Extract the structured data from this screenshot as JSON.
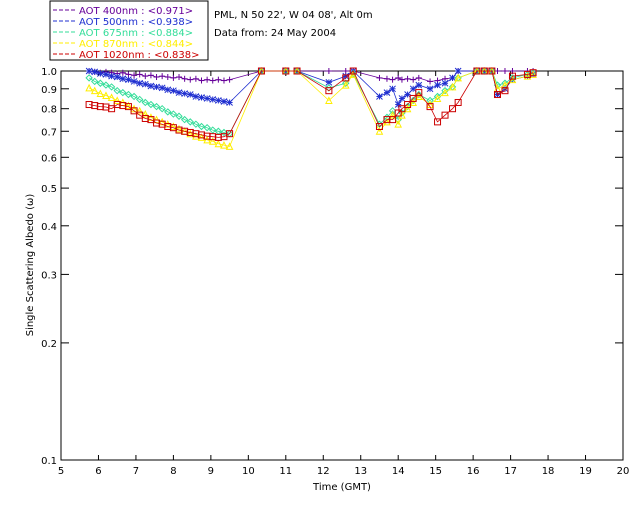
{
  "header": {
    "site_line": "PML, N 50 22', W 04 08', Alt 0m",
    "date_line": "Data from: 24 May 2004"
  },
  "legend": [
    {
      "text": "AOT  400nm : <0.971>",
      "color": "#660099"
    },
    {
      "text": "AOT  500nm : <0.938>",
      "color": "#1f2fd0"
    },
    {
      "text": "AOT  675nm : <0.884>",
      "color": "#33dd99"
    },
    {
      "text": "AOT  870nm : <0.844>",
      "color": "#ffee00"
    },
    {
      "text": "AOT 1020nm : <0.838>",
      "color": "#cc0000"
    }
  ],
  "chart_data": {
    "type": "scatter",
    "xlabel": "Time (GMT)",
    "ylabel": "Single Scattering Albedo (ω)",
    "xlim": [
      5,
      20
    ],
    "ylim": [
      0.1,
      1.0
    ],
    "y_scale": "log",
    "x_ticks": [
      "5",
      "6",
      "7",
      "8",
      "9",
      "10",
      "11",
      "12",
      "13",
      "14",
      "15",
      "16",
      "17",
      "18",
      "19",
      "20"
    ],
    "y_ticks": [
      "0.1",
      "0.2",
      "0.3",
      "0.4",
      "0.5",
      "0.6",
      "0.7",
      "0.8",
      "0.9",
      "1.0"
    ],
    "series": [
      {
        "name": "AOT  400nm : <0.971>",
        "color": "#660099",
        "marker": "plus",
        "x": [
          5.75,
          5.9,
          6.05,
          6.2,
          6.35,
          6.5,
          6.65,
          6.8,
          6.95,
          7.1,
          7.25,
          7.4,
          7.55,
          7.7,
          7.85,
          8.0,
          8.15,
          8.3,
          8.45,
          8.6,
          8.75,
          8.9,
          9.05,
          9.2,
          9.35,
          9.5,
          10.35,
          11.0,
          11.3,
          12.15,
          12.6,
          12.8,
          13.5,
          13.7,
          13.85,
          14.0,
          14.1,
          14.25,
          14.4,
          14.55,
          14.85,
          15.05,
          15.25,
          15.45,
          15.6,
          16.1,
          16.3,
          16.5,
          16.65,
          16.85,
          17.05,
          17.45,
          17.6
        ],
        "y": [
          1.0,
          0.995,
          0.99,
          0.995,
          0.99,
          0.985,
          0.99,
          0.98,
          0.975,
          0.98,
          0.97,
          0.975,
          0.965,
          0.97,
          0.965,
          0.96,
          0.965,
          0.955,
          0.95,
          0.955,
          0.945,
          0.95,
          0.945,
          0.95,
          0.945,
          0.95,
          1.0,
          1.0,
          1.0,
          1.0,
          1.0,
          1.0,
          0.96,
          0.955,
          0.95,
          0.96,
          0.95,
          0.955,
          0.95,
          0.96,
          0.94,
          0.945,
          0.955,
          0.96,
          1.0,
          1.0,
          1.0,
          1.0,
          1.0,
          1.0,
          1.0,
          1.0,
          1.0
        ]
      },
      {
        "name": "AOT  500nm : <0.938>",
        "color": "#1f2fd0",
        "marker": "asterisk",
        "x": [
          5.75,
          5.9,
          6.05,
          6.2,
          6.35,
          6.5,
          6.65,
          6.8,
          6.95,
          7.1,
          7.25,
          7.4,
          7.55,
          7.7,
          7.85,
          8.0,
          8.15,
          8.3,
          8.45,
          8.6,
          8.75,
          8.9,
          9.05,
          9.2,
          9.35,
          9.5,
          10.35,
          11.0,
          11.3,
          12.15,
          12.6,
          12.8,
          13.5,
          13.7,
          13.85,
          14.0,
          14.1,
          14.25,
          14.4,
          14.55,
          14.85,
          15.05,
          15.25,
          15.45,
          15.6,
          16.1,
          16.3,
          16.5,
          16.65,
          16.85,
          17.05,
          17.45,
          17.6
        ],
        "y": [
          1.0,
          0.995,
          0.985,
          0.98,
          0.97,
          0.965,
          0.955,
          0.95,
          0.94,
          0.93,
          0.925,
          0.915,
          0.91,
          0.905,
          0.895,
          0.89,
          0.88,
          0.875,
          0.87,
          0.86,
          0.855,
          0.85,
          0.845,
          0.84,
          0.835,
          0.83,
          1.0,
          1.0,
          1.0,
          0.935,
          0.97,
          1.0,
          0.86,
          0.88,
          0.9,
          0.82,
          0.85,
          0.87,
          0.9,
          0.92,
          0.9,
          0.92,
          0.93,
          0.96,
          1.0,
          1.0,
          1.0,
          1.0,
          0.87,
          0.9,
          0.95,
          0.97,
          0.98
        ]
      },
      {
        "name": "AOT  675nm : <0.884>",
        "color": "#33dd99",
        "marker": "diamond",
        "x": [
          5.75,
          5.9,
          6.05,
          6.2,
          6.35,
          6.5,
          6.65,
          6.8,
          6.95,
          7.1,
          7.25,
          7.4,
          7.55,
          7.7,
          7.85,
          8.0,
          8.15,
          8.3,
          8.45,
          8.6,
          8.75,
          8.9,
          9.05,
          9.2,
          9.35,
          9.5,
          10.35,
          11.0,
          11.3,
          12.15,
          12.6,
          12.8,
          13.5,
          13.7,
          13.85,
          14.0,
          14.1,
          14.25,
          14.4,
          14.55,
          14.85,
          15.05,
          15.25,
          15.45,
          15.6,
          16.1,
          16.3,
          16.5,
          16.65,
          16.85,
          17.05,
          17.45,
          17.6
        ],
        "y": [
          0.96,
          0.94,
          0.93,
          0.92,
          0.91,
          0.89,
          0.88,
          0.87,
          0.86,
          0.845,
          0.83,
          0.82,
          0.81,
          0.8,
          0.785,
          0.775,
          0.765,
          0.75,
          0.74,
          0.73,
          0.72,
          0.715,
          0.705,
          0.7,
          0.695,
          0.69,
          1.0,
          1.0,
          1.0,
          0.905,
          0.93,
          0.985,
          0.73,
          0.76,
          0.79,
          0.75,
          0.78,
          0.81,
          0.84,
          0.87,
          0.84,
          0.86,
          0.89,
          0.91,
          0.96,
          1.0,
          1.0,
          1.0,
          0.92,
          0.93,
          0.96,
          0.98,
          0.99
        ]
      },
      {
        "name": "AOT  870nm : <0.844>",
        "color": "#ffee00",
        "marker": "triangle",
        "x": [
          5.75,
          5.9,
          6.05,
          6.2,
          6.35,
          6.5,
          6.65,
          6.8,
          6.95,
          7.1,
          7.25,
          7.4,
          7.55,
          7.7,
          7.85,
          8.0,
          8.15,
          8.3,
          8.45,
          8.6,
          8.75,
          8.9,
          9.05,
          9.2,
          9.35,
          9.5,
          10.35,
          11.0,
          11.3,
          12.15,
          12.6,
          12.8,
          13.5,
          13.7,
          13.85,
          14.0,
          14.1,
          14.25,
          14.4,
          14.55,
          14.85,
          15.05,
          15.25,
          15.45,
          15.6,
          16.1,
          16.3,
          16.5,
          16.65,
          16.85,
          17.05,
          17.45,
          17.6
        ],
        "y": [
          0.905,
          0.89,
          0.875,
          0.865,
          0.855,
          0.84,
          0.83,
          0.815,
          0.8,
          0.79,
          0.775,
          0.76,
          0.75,
          0.74,
          0.73,
          0.72,
          0.71,
          0.7,
          0.69,
          0.68,
          0.675,
          0.665,
          0.66,
          0.65,
          0.645,
          0.64,
          1.0,
          1.0,
          1.0,
          0.84,
          0.92,
          0.98,
          0.7,
          0.74,
          0.77,
          0.73,
          0.77,
          0.8,
          0.83,
          0.86,
          0.82,
          0.85,
          0.88,
          0.91,
          0.96,
          1.0,
          1.0,
          1.0,
          0.9,
          0.92,
          0.95,
          0.97,
          0.98
        ]
      },
      {
        "name": "AOT 1020nm : <0.838>",
        "color": "#cc0000",
        "marker": "square",
        "x": [
          5.75,
          5.9,
          6.05,
          6.2,
          6.35,
          6.5,
          6.65,
          6.8,
          6.95,
          7.1,
          7.25,
          7.4,
          7.55,
          7.7,
          7.85,
          8.0,
          8.15,
          8.3,
          8.45,
          8.6,
          8.75,
          8.9,
          9.05,
          9.2,
          9.35,
          9.5,
          10.35,
          11.0,
          11.3,
          12.15,
          12.6,
          12.8,
          13.5,
          13.7,
          13.85,
          14.0,
          14.1,
          14.25,
          14.4,
          14.55,
          14.85,
          15.05,
          15.25,
          15.45,
          15.6,
          16.1,
          16.3,
          16.5,
          16.65,
          16.85,
          17.05,
          17.45,
          17.6
        ],
        "y": [
          0.82,
          0.815,
          0.81,
          0.808,
          0.8,
          0.82,
          0.815,
          0.81,
          0.79,
          0.77,
          0.755,
          0.75,
          0.735,
          0.73,
          0.72,
          0.715,
          0.705,
          0.7,
          0.695,
          0.69,
          0.685,
          0.68,
          0.678,
          0.675,
          0.678,
          0.69,
          1.0,
          1.0,
          1.0,
          0.89,
          0.96,
          1.0,
          0.72,
          0.75,
          0.75,
          0.78,
          0.8,
          0.82,
          0.85,
          0.88,
          0.81,
          0.74,
          0.77,
          0.8,
          0.83,
          1.0,
          1.0,
          1.0,
          0.87,
          0.89,
          0.97,
          0.98,
          0.99
        ]
      }
    ]
  }
}
